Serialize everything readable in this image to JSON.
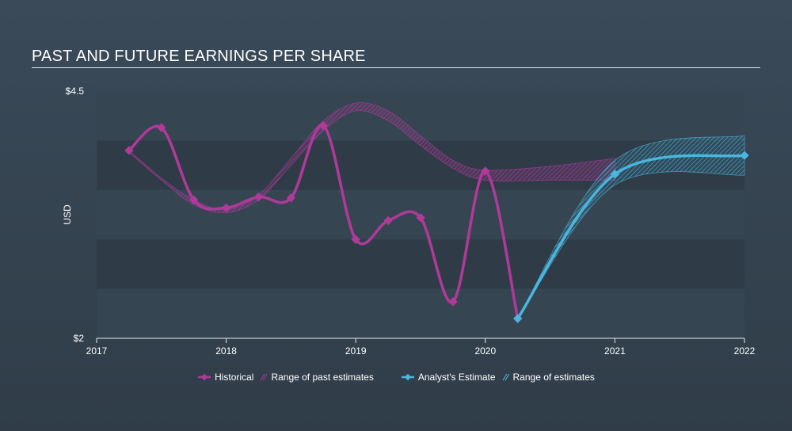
{
  "title": "PAST AND FUTURE EARNINGS PER SHARE",
  "y_axis": {
    "label": "USD",
    "max_label": "$4.5",
    "min_label": "$2"
  },
  "legend": {
    "historical": "Historical",
    "past_range": "Range of past estimates",
    "estimate": "Analyst's Estimate",
    "estimate_range": "Range of estimates"
  },
  "colors": {
    "historical": "#b0399a",
    "estimate": "#4ab6dd",
    "background": "#34424f",
    "plot_band_dark": "#2f3c48",
    "plot_band_light": "#364552"
  },
  "chart_data": {
    "type": "line",
    "title": "PAST AND FUTURE EARNINGS PER SHARE",
    "ylabel": "USD",
    "ylim": [
      2,
      4.5
    ],
    "xlim": [
      2017,
      2022
    ],
    "x_ticks": [
      "2017",
      "2018",
      "2019",
      "2020",
      "2021",
      "2022"
    ],
    "grid": true,
    "legend_position": "bottom-center",
    "series": [
      {
        "name": "Historical",
        "x": [
          2017.25,
          2017.5,
          2017.75,
          2018.0,
          2018.25,
          2018.5,
          2018.75,
          2019.0,
          2019.25,
          2019.5,
          2019.75,
          2020.0,
          2020.25
        ],
        "y": [
          3.9,
          4.13,
          3.4,
          3.32,
          3.43,
          3.42,
          4.15,
          3.0,
          3.19,
          3.22,
          2.37,
          3.69,
          2.2
        ]
      },
      {
        "name": "Analyst's Estimate",
        "x": [
          2020.25,
          2021.0,
          2022.0
        ],
        "y": [
          2.2,
          3.66,
          3.85
        ]
      }
    ],
    "ranges": [
      {
        "name": "Range of past estimates",
        "x": [
          2017.25,
          2017.5,
          2017.75,
          2018.0,
          2018.25,
          2018.5,
          2018.75,
          2019.0,
          2019.25,
          2019.5,
          2019.75,
          2020.0,
          2020.5,
          2021.0
        ],
        "low": [
          3.88,
          3.6,
          3.35,
          3.27,
          3.4,
          3.75,
          4.1,
          4.3,
          4.2,
          3.95,
          3.72,
          3.6,
          3.6,
          3.6
        ],
        "high": [
          3.9,
          3.62,
          3.4,
          3.3,
          3.45,
          3.82,
          4.2,
          4.38,
          4.3,
          4.05,
          3.8,
          3.7,
          3.74,
          3.82
        ]
      },
      {
        "name": "Range of estimates",
        "x": [
          2020.25,
          2021.0,
          2022.0
        ],
        "low": [
          2.2,
          3.55,
          3.65
        ],
        "high": [
          2.2,
          3.8,
          4.05
        ]
      }
    ]
  }
}
